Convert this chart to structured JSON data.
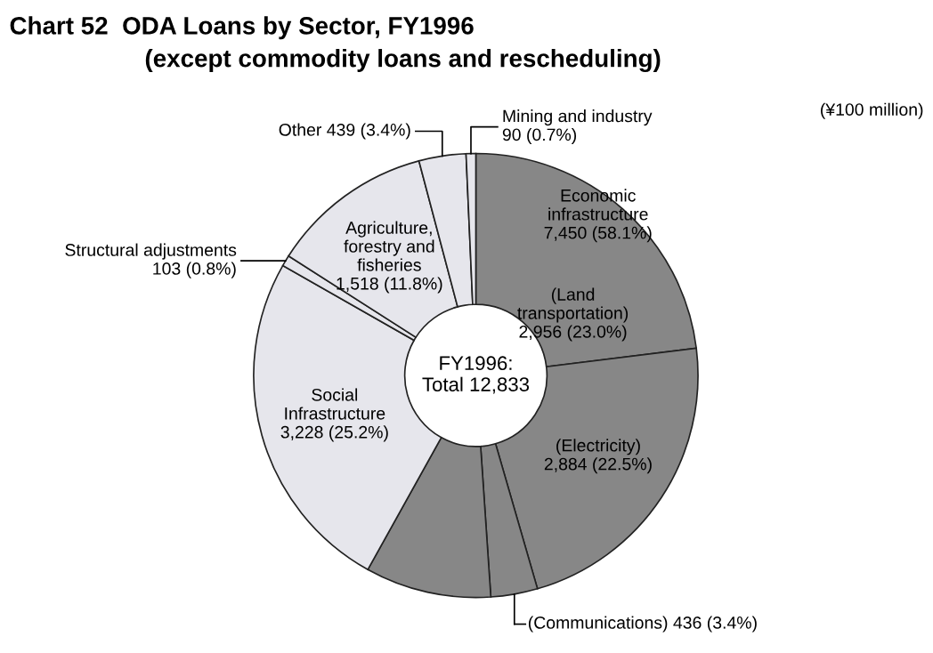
{
  "chart_data": {
    "type": "donut",
    "title": "Chart 52  ODA Loans by Sector, FY1996",
    "subtitle": "(except commodity loans and rescheduling)",
    "categories": [
      "(Land\ntransportation)",
      "(Electricity)",
      "(Communications)",
      null,
      "Social\nInfrastructure",
      "Structural adjustments",
      "Agriculture,\nforestry and\nfisheries",
      "Other",
      "Mining and industry"
    ],
    "values": [
      2956,
      2884,
      436,
      1174,
      3228,
      103,
      1518,
      439,
      90
    ],
    "value_labels": [
      "2,956 (23.0%)",
      "2,884 (22.5%)",
      "436 (3.4%)",
      null,
      "3,228 (25.2%)",
      "103 (0.8%)",
      "1,518 (11.8%)",
      "439 (3.4%)",
      "90 (0.7%)"
    ],
    "colors": [
      "#878787",
      "#878787",
      "#878787",
      "#878787",
      "#e6e6ec",
      "#e6e6ec",
      "#e6e6ec",
      "#e6e6ec",
      "#e6e6ec"
    ],
    "annotations": [
      "FY1996:\nTotal 12,833",
      "Economic\ninfrastructure\n7,450 (58.1%)",
      "(¥100 million)"
    ],
    "legend": false
  }
}
